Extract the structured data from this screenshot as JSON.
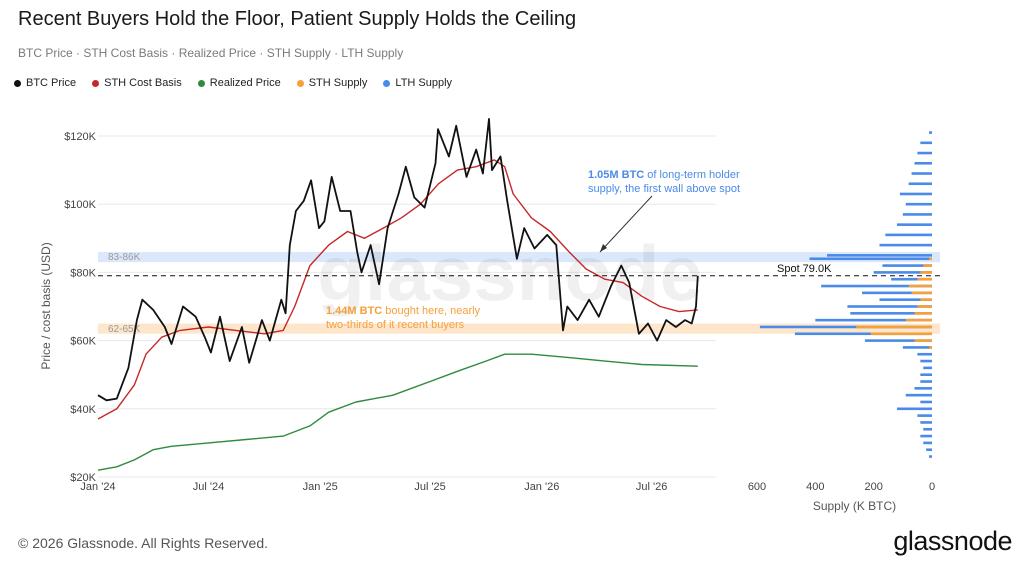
{
  "header": {
    "title": "Recent Buyers Hold the Floor, Patient Supply Holds the Ceiling",
    "subtitle": "BTC Price · STH Cost Basis · Realized Price · STH Supply · LTH Supply"
  },
  "legend": [
    {
      "label": "BTC Price",
      "color": "#111111"
    },
    {
      "label": "STH Cost Basis",
      "color": "#c62828"
    },
    {
      "label": "Realized Price",
      "color": "#2e8b3e"
    },
    {
      "label": "STH Supply",
      "color": "#f5a03a"
    },
    {
      "label": "LTH Supply",
      "color": "#4a8ae8"
    }
  ],
  "footer": {
    "copyright": "© 2026 Glassnode. All Rights Reserved.",
    "brand": "glassnode"
  },
  "watermark": "glassnode",
  "colors": {
    "btc": "#111111",
    "sth_cost": "#c62828",
    "realized": "#2e8b3e",
    "sth_supply": "#f5a03a",
    "lth_supply": "#4a8ae8",
    "band_top": "#dbe8fb",
    "band_bottom": "#fde6cc"
  },
  "chart_data": [
    {
      "type": "line",
      "ylabel": "Price / cost basis (USD)",
      "ylim": [
        20000,
        130000
      ],
      "yticks": [
        20000,
        40000,
        60000,
        80000,
        100000,
        120000
      ],
      "ytick_labels": [
        "$20K",
        "$40K",
        "$60K",
        "$80K",
        "$100K",
        "$120K"
      ],
      "xlim": [
        "2024-01-01",
        "2026-10-15"
      ],
      "xticks": [
        "2024-01-01",
        "2024-07-01",
        "2025-01-01",
        "2025-07-01",
        "2026-01-01",
        "2026-07-01"
      ],
      "xtick_labels": [
        "Jan '24",
        "Jul '24",
        "Jan '25",
        "Jul '25",
        "Jan '26",
        "Jul '26"
      ],
      "grid": true,
      "bands": [
        {
          "label": "83-86K",
          "from": 83000,
          "to": 86000
        },
        {
          "label": "62-65K",
          "from": 62000,
          "to": 65000
        }
      ],
      "spot": {
        "label": "Spot 79.0K",
        "value": 79000
      },
      "annotations": [
        {
          "highlight": "1.05M BTC",
          "lines": [
            "of long-term holder",
            "supply, the first wall above spot"
          ]
        },
        {
          "highlight": "1.44M BTC",
          "lines": [
            "bought here, nearly",
            "two-thirds of it recent buyers"
          ]
        }
      ],
      "series": [
        {
          "name": "BTC Price",
          "points": [
            [
              "2024-01-01",
              44000
            ],
            [
              "2024-01-15",
              42500
            ],
            [
              "2024-02-01",
              43000
            ],
            [
              "2024-02-20",
              52000
            ],
            [
              "2024-03-05",
              66000
            ],
            [
              "2024-03-14",
              72000
            ],
            [
              "2024-04-01",
              69000
            ],
            [
              "2024-04-20",
              64000
            ],
            [
              "2024-05-01",
              59000
            ],
            [
              "2024-05-20",
              70000
            ],
            [
              "2024-06-10",
              67000
            ],
            [
              "2024-06-25",
              61000
            ],
            [
              "2024-07-05",
              56500
            ],
            [
              "2024-07-20",
              67000
            ],
            [
              "2024-08-05",
              54000
            ],
            [
              "2024-08-25",
              64000
            ],
            [
              "2024-09-06",
              53500
            ],
            [
              "2024-09-27",
              66000
            ],
            [
              "2024-10-10",
              60000
            ],
            [
              "2024-10-29",
              72000
            ],
            [
              "2024-11-05",
              68000
            ],
            [
              "2024-11-12",
              88000
            ],
            [
              "2024-11-22",
              98000
            ],
            [
              "2024-12-05",
              101000
            ],
            [
              "2024-12-17",
              107000
            ],
            [
              "2024-12-30",
              93000
            ],
            [
              "2025-01-08",
              95000
            ],
            [
              "2025-01-20",
              108000
            ],
            [
              "2025-02-03",
              98000
            ],
            [
              "2025-02-20",
              98000
            ],
            [
              "2025-03-03",
              86000
            ],
            [
              "2025-03-10",
              80000
            ],
            [
              "2025-03-25",
              88000
            ],
            [
              "2025-04-08",
              76500
            ],
            [
              "2025-04-22",
              93000
            ],
            [
              "2025-05-10",
              103000
            ],
            [
              "2025-05-22",
              111000
            ],
            [
              "2025-06-05",
              102000
            ],
            [
              "2025-06-22",
              99000
            ],
            [
              "2025-07-10",
              112000
            ],
            [
              "2025-07-14",
              122000
            ],
            [
              "2025-08-01",
              114000
            ],
            [
              "2025-08-13",
              123000
            ],
            [
              "2025-08-30",
              108000
            ],
            [
              "2025-09-15",
              116000
            ],
            [
              "2025-09-26",
              109000
            ],
            [
              "2025-10-06",
              125000
            ],
            [
              "2025-10-11",
              110000
            ],
            [
              "2025-10-25",
              114000
            ],
            [
              "2025-11-05",
              101000
            ],
            [
              "2025-11-21",
              84000
            ],
            [
              "2025-12-03",
              93000
            ],
            [
              "2025-12-20",
              87000
            ],
            [
              "2026-01-10",
              91000
            ],
            [
              "2026-01-25",
              88000
            ],
            [
              "2026-02-05",
              63000
            ],
            [
              "2026-02-12",
              70000
            ],
            [
              "2026-03-01",
              66000
            ],
            [
              "2026-03-20",
              72000
            ],
            [
              "2026-04-05",
              67000
            ],
            [
              "2026-04-25",
              76000
            ],
            [
              "2026-05-12",
              82000
            ],
            [
              "2026-05-25",
              77000
            ],
            [
              "2026-06-10",
              62000
            ],
            [
              "2026-06-25",
              65000
            ],
            [
              "2026-07-10",
              60000
            ],
            [
              "2026-07-25",
              66000
            ],
            [
              "2026-08-10",
              64000
            ],
            [
              "2026-08-25",
              66000
            ],
            [
              "2026-09-05",
              65000
            ],
            [
              "2026-09-12",
              70000
            ],
            [
              "2026-09-15",
              79000
            ]
          ]
        },
        {
          "name": "STH Cost Basis",
          "points": [
            [
              "2024-01-01",
              37000
            ],
            [
              "2024-02-01",
              40000
            ],
            [
              "2024-03-01",
              47000
            ],
            [
              "2024-03-20",
              56000
            ],
            [
              "2024-04-15",
              61000
            ],
            [
              "2024-05-15",
              63000
            ],
            [
              "2024-07-01",
              64000
            ],
            [
              "2024-08-15",
              63000
            ],
            [
              "2024-10-01",
              62000
            ],
            [
              "2024-11-01",
              63000
            ],
            [
              "2024-11-20",
              70000
            ],
            [
              "2024-12-15",
              82000
            ],
            [
              "2025-01-15",
              88000
            ],
            [
              "2025-02-15",
              92000
            ],
            [
              "2025-03-15",
              90000
            ],
            [
              "2025-04-15",
              93000
            ],
            [
              "2025-05-15",
              96000
            ],
            [
              "2025-06-15",
              100000
            ],
            [
              "2025-07-15",
              106000
            ],
            [
              "2025-08-15",
              110000
            ],
            [
              "2025-09-15",
              111000
            ],
            [
              "2025-10-15",
              113000
            ],
            [
              "2025-11-01",
              111000
            ],
            [
              "2025-11-15",
              103000
            ],
            [
              "2025-12-15",
              96000
            ],
            [
              "2026-01-15",
              92000
            ],
            [
              "2026-02-15",
              86000
            ],
            [
              "2026-03-15",
              81000
            ],
            [
              "2026-04-15",
              78000
            ],
            [
              "2026-05-15",
              77000
            ],
            [
              "2026-06-15",
              73000
            ],
            [
              "2026-07-15",
              70000
            ],
            [
              "2026-08-15",
              68500
            ],
            [
              "2026-09-15",
              69000
            ]
          ]
        },
        {
          "name": "Realized Price",
          "points": [
            [
              "2024-01-01",
              22000
            ],
            [
              "2024-02-01",
              23000
            ],
            [
              "2024-03-01",
              25000
            ],
            [
              "2024-04-01",
              28000
            ],
            [
              "2024-05-01",
              29000
            ],
            [
              "2024-07-01",
              30000
            ],
            [
              "2024-09-01",
              31000
            ],
            [
              "2024-11-01",
              32000
            ],
            [
              "2024-12-15",
              35000
            ],
            [
              "2025-01-15",
              39000
            ],
            [
              "2025-03-01",
              42000
            ],
            [
              "2025-05-01",
              44000
            ],
            [
              "2025-07-01",
              48000
            ],
            [
              "2025-08-15",
              51000
            ],
            [
              "2025-10-01",
              54000
            ],
            [
              "2025-11-01",
              56000
            ],
            [
              "2025-12-15",
              56000
            ],
            [
              "2026-02-15",
              55000
            ],
            [
              "2026-04-15",
              54000
            ],
            [
              "2026-06-15",
              53000
            ],
            [
              "2026-09-15",
              52500
            ]
          ]
        }
      ]
    },
    {
      "type": "bar",
      "orientation": "horizontal",
      "xlabel": "Supply (K BTC)",
      "xlim": [
        650,
        0
      ],
      "xticks": [
        600,
        400,
        200,
        0
      ],
      "xtick_labels": [
        "600",
        "400",
        "200",
        "0"
      ],
      "price_levels": [
        121000,
        118000,
        115000,
        112000,
        109000,
        106000,
        103000,
        100000,
        97000,
        94000,
        91000,
        88000,
        85000,
        84000,
        82000,
        80000,
        78000,
        76000,
        74000,
        72000,
        70000,
        68000,
        66000,
        64000,
        62000,
        60000,
        58000,
        56000,
        54000,
        52000,
        50000,
        48000,
        46000,
        44000,
        42000,
        40000,
        38000,
        36000,
        34000,
        32000,
        30000,
        28000,
        26000
      ],
      "series": [
        {
          "name": "STH Supply",
          "values": [
            0,
            0,
            0,
            0,
            0,
            0,
            0,
            0,
            0,
            0,
            0,
            0,
            0,
            10,
            30,
            40,
            50,
            80,
            70,
            40,
            50,
            60,
            90,
            260,
            210,
            60,
            10,
            0,
            0,
            0,
            0,
            0,
            0,
            0,
            0,
            0,
            0,
            0,
            0,
            0,
            0,
            0,
            0
          ]
        },
        {
          "name": "LTH Supply",
          "values": [
            10,
            40,
            50,
            60,
            70,
            80,
            110,
            90,
            100,
            120,
            160,
            180,
            360,
            410,
            140,
            160,
            90,
            300,
            170,
            140,
            240,
            220,
            310,
            330,
            260,
            170,
            90,
            50,
            40,
            30,
            40,
            40,
            60,
            90,
            40,
            120,
            50,
            40,
            30,
            40,
            30,
            20,
            10
          ]
        }
      ]
    }
  ]
}
